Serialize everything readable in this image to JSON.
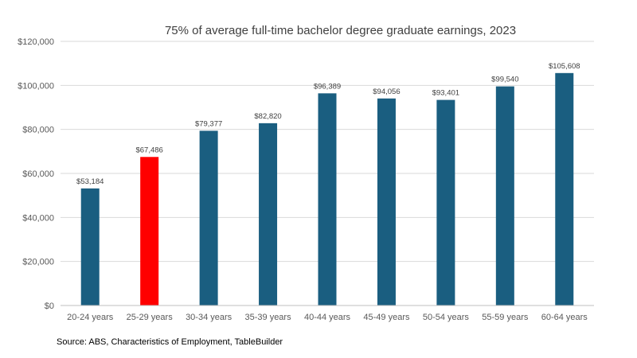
{
  "chart_data": {
    "type": "bar",
    "title": "75% of average full-time bachelor degree graduate earnings, 2023",
    "xlabel": "",
    "ylabel": "",
    "categories": [
      "20-24 years",
      "25-29 years",
      "30-34 years",
      "35-39 years",
      "40-44 years",
      "45-49 years",
      "50-54 years",
      "55-59 years",
      "60-64 years"
    ],
    "values": [
      53184,
      67486,
      79377,
      82820,
      96389,
      94056,
      93401,
      99540,
      105608
    ],
    "value_labels": [
      "$53,184",
      "$67,486",
      "$79,377",
      "$82,820",
      "$96,389",
      "$94,056",
      "$93,401",
      "$99,540",
      "$105,608"
    ],
    "highlight_index": 1,
    "ylim": [
      0,
      120000
    ],
    "y_ticks": [
      0,
      20000,
      40000,
      60000,
      80000,
      100000,
      120000
    ],
    "y_tick_labels": [
      "$0",
      "$20,000",
      "$40,000",
      "$60,000",
      "$80,000",
      "$100,000",
      "$120,000"
    ],
    "grid": true,
    "legend": "none"
  },
  "colors": {
    "bar": "#1a5e80",
    "highlight": "#ff0000",
    "grid": "#d9d9d9",
    "axis": "#bfbfbf"
  },
  "source": "Source: ABS, Characteristics of Employment,  TableBuilder"
}
